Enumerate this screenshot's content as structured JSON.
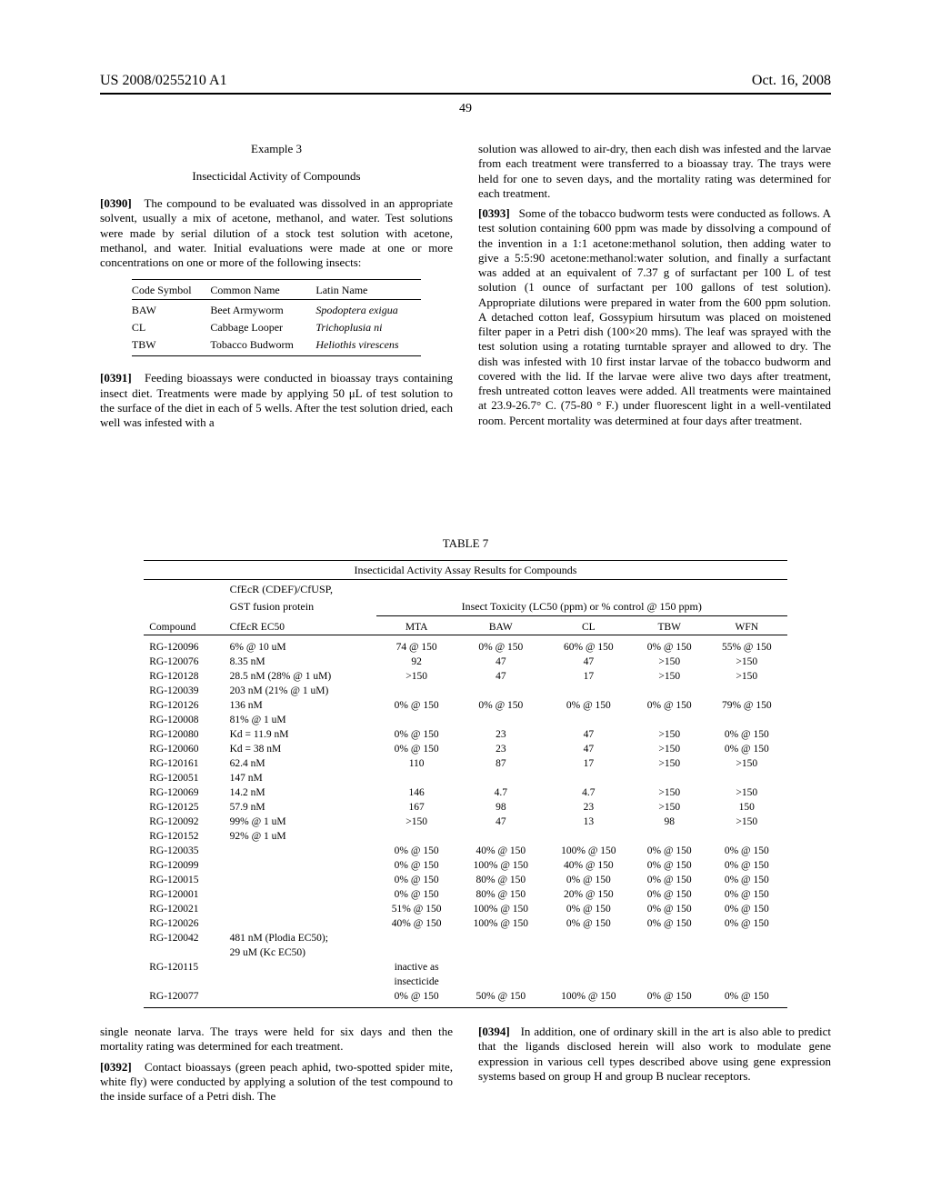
{
  "header": {
    "left": "US 2008/0255210 A1",
    "right": "Oct. 16, 2008"
  },
  "page_number": "49",
  "example": {
    "num": "Example 3",
    "title": "Insecticidal Activity of Compounds"
  },
  "para_0390": {
    "num": "[0390]",
    "text": "The compound to be evaluated was dissolved in an appropriate solvent, usually a mix of acetone, methanol, and water. Test solutions were made by serial dilution of a stock test solution with acetone, methanol, and water. Initial evaluations were made at one or more concentrations on one or more of the following insects:"
  },
  "insect_table": {
    "headers": [
      "Code Symbol",
      "Common Name",
      "Latin Name"
    ],
    "rows": [
      {
        "code": "BAW",
        "common": "Beet Armyworm",
        "latin": "Spodoptera exigua"
      },
      {
        "code": "CL",
        "common": "Cabbage Looper",
        "latin": "Trichoplusia ni"
      },
      {
        "code": "TBW",
        "common": "Tobacco Budworm",
        "latin": "Heliothis virescens"
      }
    ]
  },
  "para_0391": {
    "num": "[0391]",
    "text": "Feeding bioassays were conducted in bioassay trays containing insect diet. Treatments were made by applying 50 μL of test solution to the surface of the diet in each of 5 wells. After the test solution dried, each well was infested with a"
  },
  "para_top_right": "solution was allowed to air-dry, then each dish was infested and the larvae from each treatment were transferred to a bioassay tray. The trays were held for one to seven days, and the mortality rating was determined for each treatment.",
  "para_0393": {
    "num": "[0393]",
    "text": "Some of the tobacco budworm tests were conducted as follows. A test solution containing 600 ppm was made by dissolving a compound of the invention in a 1:1 acetone:methanol solution, then adding water to give a 5:5:90 acetone:methanol:water solution, and finally a surfactant was added at an equivalent of 7.37 g of surfactant per 100 L of test solution (1 ounce of surfactant per 100 gallons of test solution). Appropriate dilutions were prepared in water from the 600 ppm solution. A detached cotton leaf, Gossypium hirsutum was placed on moistened filter paper in a Petri dish (100×20 mms). The leaf was sprayed with the test solution using a rotating turntable sprayer and allowed to dry. The dish was infested with 10 first instar larvae of the tobacco budworm and covered with the lid. If the larvae were alive two days after treatment, fresh untreated cotton leaves were added. All treatments were maintained at 23.9-26.7° C. (75-80 ° F.) under fluorescent light in a well-ventilated room. Percent mortality was determined at four days after treatment."
  },
  "table7": {
    "label": "TABLE 7",
    "title": "Insecticidal Activity Assay Results for Compounds",
    "sub1_line1": "CfEcR (CDEF)/CfUSP,",
    "sub1_line2": "GST fusion protein",
    "sub2": "Insect Toxicity (LC50 (ppm) or % control @ 150 ppm)",
    "col_compound": "Compound",
    "col_cfecr": "CfEcR EC50",
    "col_mta": "MTA",
    "col_baw": "BAW",
    "col_cl": "CL",
    "col_tbw": "TBW",
    "col_wfn": "WFN",
    "rows": [
      {
        "c": "RG-120096",
        "e": "6% @ 10 uM",
        "mta": "74 @ 150",
        "baw": "0% @ 150",
        "cl": "60% @ 150",
        "tbw": "0% @ 150",
        "wfn": "55% @ 150"
      },
      {
        "c": "RG-120076",
        "e": "8.35 nM",
        "mta": "92",
        "baw": "47",
        "cl": "47",
        "tbw": ">150",
        "wfn": ">150"
      },
      {
        "c": "RG-120128",
        "e": "28.5 nM (28% @ 1 uM)",
        "mta": ">150",
        "baw": "47",
        "cl": "17",
        "tbw": ">150",
        "wfn": ">150"
      },
      {
        "c": "RG-120039",
        "e": "203 nM (21% @ 1 uM)",
        "mta": "",
        "baw": "",
        "cl": "",
        "tbw": "",
        "wfn": ""
      },
      {
        "c": "RG-120126",
        "e": "136 nM",
        "mta": "0% @ 150",
        "baw": "0% @ 150",
        "cl": "0% @ 150",
        "tbw": "0% @ 150",
        "wfn": "79% @ 150"
      },
      {
        "c": "RG-120008",
        "e": "81% @ 1 uM",
        "mta": "",
        "baw": "",
        "cl": "",
        "tbw": "",
        "wfn": ""
      },
      {
        "c": "RG-120080",
        "e": "Kd = 11.9 nM",
        "mta": "0% @ 150",
        "baw": "23",
        "cl": "47",
        "tbw": ">150",
        "wfn": "0% @ 150"
      },
      {
        "c": "RG-120060",
        "e": "Kd = 38 nM",
        "mta": "0% @ 150",
        "baw": "23",
        "cl": "47",
        "tbw": ">150",
        "wfn": "0% @ 150"
      },
      {
        "c": "RG-120161",
        "e": "62.4 nM",
        "mta": "110",
        "baw": "87",
        "cl": "17",
        "tbw": ">150",
        "wfn": ">150"
      },
      {
        "c": "RG-120051",
        "e": "147 nM",
        "mta": "",
        "baw": "",
        "cl": "",
        "tbw": "",
        "wfn": ""
      },
      {
        "c": "RG-120069",
        "e": "14.2 nM",
        "mta": "146",
        "baw": "4.7",
        "cl": "4.7",
        "tbw": ">150",
        "wfn": ">150"
      },
      {
        "c": "RG-120125",
        "e": "57.9 nM",
        "mta": "167",
        "baw": "98",
        "cl": "23",
        "tbw": ">150",
        "wfn": "150"
      },
      {
        "c": "RG-120092",
        "e": "99% @ 1 uM",
        "mta": ">150",
        "baw": "47",
        "cl": "13",
        "tbw": "98",
        "wfn": ">150"
      },
      {
        "c": "RG-120152",
        "e": "92% @ 1 uM",
        "mta": "",
        "baw": "",
        "cl": "",
        "tbw": "",
        "wfn": ""
      },
      {
        "c": "RG-120035",
        "e": "",
        "mta": "0% @ 150",
        "baw": "40% @ 150",
        "cl": "100% @ 150",
        "tbw": "0% @ 150",
        "wfn": "0% @ 150"
      },
      {
        "c": "RG-120099",
        "e": "",
        "mta": "0% @ 150",
        "baw": "100% @ 150",
        "cl": "40% @ 150",
        "tbw": "0% @ 150",
        "wfn": "0% @ 150"
      },
      {
        "c": "RG-120015",
        "e": "",
        "mta": "0% @ 150",
        "baw": "80% @ 150",
        "cl": "0% @ 150",
        "tbw": "0% @ 150",
        "wfn": "0% @ 150"
      },
      {
        "c": "RG-120001",
        "e": "",
        "mta": "0% @ 150",
        "baw": "80% @ 150",
        "cl": "20% @ 150",
        "tbw": "0% @ 150",
        "wfn": "0% @ 150"
      },
      {
        "c": "RG-120021",
        "e": "",
        "mta": "51% @ 150",
        "baw": "100% @ 150",
        "cl": "0% @ 150",
        "tbw": "0% @ 150",
        "wfn": "0% @ 150"
      },
      {
        "c": "RG-120026",
        "e": "",
        "mta": "40% @ 150",
        "baw": "100% @ 150",
        "cl": "0% @ 150",
        "tbw": "0% @ 150",
        "wfn": "0% @ 150"
      },
      {
        "c": "RG-120042",
        "e": "481 nM (Plodia EC50);",
        "mta": "",
        "baw": "",
        "cl": "",
        "tbw": "",
        "wfn": ""
      },
      {
        "c": "",
        "e": "29 uM (Kc EC50)",
        "mta": "",
        "baw": "",
        "cl": "",
        "tbw": "",
        "wfn": ""
      },
      {
        "c": "RG-120115",
        "e": "",
        "mta": "inactive as",
        "baw": "",
        "cl": "",
        "tbw": "",
        "wfn": ""
      },
      {
        "c": "",
        "e": "",
        "mta": "insecticide",
        "baw": "",
        "cl": "",
        "tbw": "",
        "wfn": ""
      },
      {
        "c": "RG-120077",
        "e": "",
        "mta": "0% @ 150",
        "baw": "50% @ 150",
        "cl": "100% @ 150",
        "tbw": "0% @ 150",
        "wfn": "0% @ 150"
      }
    ]
  },
  "para_bottom_left": "single neonate larva. The trays were held for six days and then the mortality rating was determined for each treatment.",
  "para_0392": {
    "num": "[0392]",
    "text": "Contact bioassays (green peach aphid, two-spotted spider mite, white fly) were conducted by applying a solution of the test compound to the inside surface of a Petri dish. The"
  },
  "para_0394": {
    "num": "[0394]",
    "text": "In addition, one of ordinary skill in the art is also able to predict that the ligands disclosed herein will also work to modulate gene expression in various cell types described above using gene expression systems based on group H and group B nuclear receptors."
  }
}
